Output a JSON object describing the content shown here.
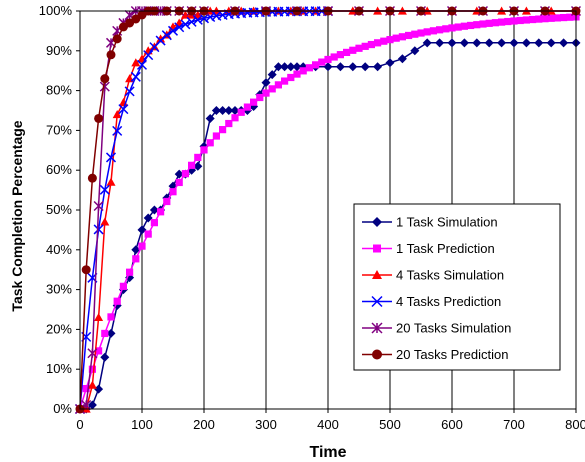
{
  "chart_data": {
    "type": "line",
    "title": "",
    "xlabel": "Time",
    "ylabel": "Task Completion Percentage",
    "xlim": [
      0,
      800
    ],
    "ylim": [
      0,
      100
    ],
    "x_ticks": [
      "0",
      "100",
      "200",
      "300",
      "400",
      "500",
      "600",
      "700",
      "800"
    ],
    "y_ticks": [
      "0%",
      "10%",
      "20%",
      "30%",
      "40%",
      "50%",
      "60%",
      "70%",
      "80%",
      "90%",
      "100%"
    ],
    "grid": "vertical",
    "legend_position": "right",
    "series": [
      {
        "name": "1 Task Simulation",
        "color": "#000080",
        "marker": "diamond",
        "points": [
          [
            0,
            0
          ],
          [
            10,
            0
          ],
          [
            20,
            1
          ],
          [
            30,
            5
          ],
          [
            40,
            13
          ],
          [
            50,
            19
          ],
          [
            60,
            26
          ],
          [
            70,
            30
          ],
          [
            80,
            33
          ],
          [
            90,
            40
          ],
          [
            100,
            45
          ],
          [
            110,
            48
          ],
          [
            120,
            50
          ],
          [
            130,
            50
          ],
          [
            140,
            53
          ],
          [
            150,
            56
          ],
          [
            160,
            59
          ],
          [
            170,
            59
          ],
          [
            180,
            60
          ],
          [
            190,
            61
          ],
          [
            200,
            66
          ],
          [
            210,
            73
          ],
          [
            220,
            75
          ],
          [
            230,
            75
          ],
          [
            240,
            75
          ],
          [
            250,
            75
          ],
          [
            260,
            75
          ],
          [
            270,
            75
          ],
          [
            280,
            76
          ],
          [
            290,
            79
          ],
          [
            300,
            82
          ],
          [
            310,
            84
          ],
          [
            320,
            86
          ],
          [
            330,
            86
          ],
          [
            340,
            86
          ],
          [
            350,
            86
          ],
          [
            360,
            86
          ],
          [
            380,
            86
          ],
          [
            400,
            86
          ],
          [
            420,
            86
          ],
          [
            440,
            86
          ],
          [
            460,
            86
          ],
          [
            480,
            86
          ],
          [
            500,
            87
          ],
          [
            520,
            88
          ],
          [
            540,
            90
          ],
          [
            560,
            92
          ],
          [
            580,
            92
          ],
          [
            600,
            92
          ],
          [
            620,
            92
          ],
          [
            640,
            92
          ],
          [
            660,
            92
          ],
          [
            680,
            92
          ],
          [
            700,
            92
          ],
          [
            720,
            92
          ],
          [
            740,
            92
          ],
          [
            760,
            92
          ],
          [
            780,
            92
          ],
          [
            800,
            92
          ]
        ]
      },
      {
        "name": "1 Task Prediction",
        "color": "#FF00FF",
        "marker": "square",
        "function": "saturating",
        "tau": 190,
        "x_range": [
          0,
          800
        ],
        "step": 10
      },
      {
        "name": "4 Tasks Simulation",
        "color": "#FF0000",
        "marker": "triangle",
        "points": [
          [
            0,
            0
          ],
          [
            10,
            0
          ],
          [
            20,
            6
          ],
          [
            30,
            23
          ],
          [
            40,
            47
          ],
          [
            50,
            57
          ],
          [
            60,
            74
          ],
          [
            70,
            77
          ],
          [
            80,
            83
          ],
          [
            90,
            87
          ],
          [
            100,
            88
          ],
          [
            110,
            90
          ],
          [
            120,
            91
          ],
          [
            130,
            93
          ],
          [
            140,
            94
          ],
          [
            150,
            96
          ],
          [
            160,
            97
          ],
          [
            170,
            99
          ],
          [
            180,
            99
          ],
          [
            190,
            99
          ],
          [
            200,
            100
          ],
          [
            210,
            100
          ],
          [
            220,
            100
          ],
          [
            240,
            100
          ],
          [
            260,
            100
          ],
          [
            280,
            100
          ],
          [
            300,
            100
          ],
          [
            320,
            100
          ],
          [
            340,
            100
          ],
          [
            360,
            100
          ],
          [
            380,
            100
          ],
          [
            400,
            100
          ],
          [
            440,
            100
          ],
          [
            480,
            100
          ],
          [
            520,
            100
          ],
          [
            560,
            100
          ],
          [
            600,
            100
          ],
          [
            640,
            100
          ],
          [
            680,
            100
          ],
          [
            720,
            100
          ],
          [
            760,
            100
          ],
          [
            800,
            100
          ]
        ]
      },
      {
        "name": "4 Tasks Prediction",
        "color": "#0000FF",
        "marker": "x",
        "function": "saturating",
        "tau": 50,
        "x_range": [
          0,
          400
        ],
        "step": 10
      },
      {
        "name": "20 Tasks Simulation",
        "color": "#800080",
        "marker": "star",
        "points": [
          [
            0,
            0
          ],
          [
            10,
            1
          ],
          [
            20,
            14
          ],
          [
            30,
            51
          ],
          [
            40,
            81
          ],
          [
            50,
            92
          ],
          [
            60,
            95
          ],
          [
            70,
            97
          ],
          [
            80,
            99
          ],
          [
            90,
            100
          ],
          [
            100,
            100
          ],
          [
            110,
            100
          ],
          [
            120,
            100
          ],
          [
            130,
            100
          ],
          [
            140,
            100
          ],
          [
            160,
            100
          ],
          [
            180,
            100
          ],
          [
            200,
            100
          ],
          [
            250,
            100
          ],
          [
            300,
            100
          ],
          [
            350,
            100
          ],
          [
            400,
            100
          ],
          [
            450,
            100
          ],
          [
            500,
            100
          ],
          [
            550,
            100
          ],
          [
            600,
            100
          ],
          [
            650,
            100
          ],
          [
            700,
            100
          ],
          [
            750,
            100
          ],
          [
            800,
            100
          ]
        ]
      },
      {
        "name": "20 Tasks Prediction",
        "color": "#800000",
        "marker": "circle",
        "points": [
          [
            0,
            0
          ],
          [
            10,
            35
          ],
          [
            20,
            58
          ],
          [
            30,
            73
          ],
          [
            40,
            83
          ],
          [
            50,
            89
          ],
          [
            60,
            93
          ],
          [
            70,
            96
          ],
          [
            80,
            97
          ],
          [
            90,
            98
          ],
          [
            100,
            99
          ],
          [
            110,
            100
          ],
          [
            120,
            100
          ],
          [
            140,
            100
          ],
          [
            160,
            100
          ],
          [
            180,
            100
          ],
          [
            200,
            100
          ],
          [
            250,
            100
          ],
          [
            300,
            100
          ],
          [
            350,
            100
          ],
          [
            400,
            100
          ],
          [
            450,
            100
          ],
          [
            500,
            100
          ],
          [
            550,
            100
          ],
          [
            600,
            100
          ],
          [
            650,
            100
          ],
          [
            700,
            100
          ],
          [
            750,
            100
          ],
          [
            800,
            100
          ]
        ]
      }
    ]
  }
}
